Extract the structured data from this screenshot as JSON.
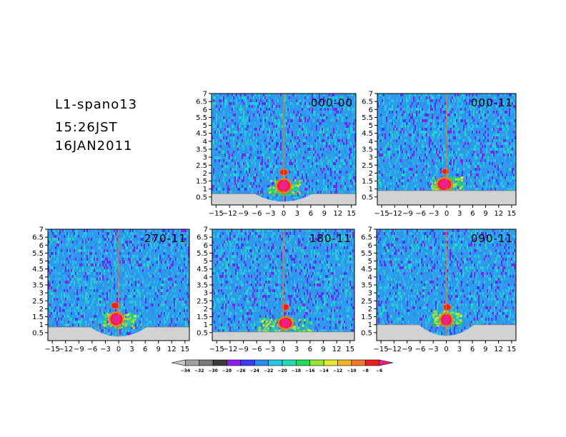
{
  "title_block": {
    "line1": "L1-spano13",
    "line2": "15:26JST",
    "line3": "16JAN2011"
  },
  "chart_data": {
    "type": "heatmap",
    "x_ticks": [
      "-15",
      "-12",
      "-9",
      "-6",
      "-3",
      "0",
      "3",
      "6",
      "9",
      "12",
      "15"
    ],
    "x_tick_values": [
      -15,
      -12,
      -9,
      -6,
      -3,
      0,
      3,
      6,
      9,
      12,
      15
    ],
    "y_ticks": [
      "0.5",
      "1",
      "1.5",
      "2",
      "2.5",
      "3",
      "3.5",
      "4",
      "4.5",
      "5",
      "5.5",
      "6",
      "6.5",
      "7"
    ],
    "y_tick_values": [
      0.5,
      1,
      1.5,
      2,
      2.5,
      3,
      3.5,
      4,
      4.5,
      5,
      5.5,
      6,
      6.5,
      7
    ],
    "xlim": [
      -16,
      16
    ],
    "ylim": [
      0,
      7
    ],
    "panels": [
      {
        "label": "000-00",
        "floor_top": 0.7,
        "floor_shape": "bowl",
        "hot": {
          "x": 0,
          "y": 1.2,
          "w": 2.6,
          "h": 0.75
        },
        "upper": {
          "x": 0,
          "y": 2.05,
          "w": 1.6,
          "h": 0.35
        },
        "warm_spread": 3.5
      },
      {
        "label": "000-11",
        "floor_top": 0.9,
        "floor_shape": "flat",
        "hot": {
          "x": -0.5,
          "y": 1.3,
          "w": 2.8,
          "h": 0.7
        },
        "upper": {
          "x": -0.3,
          "y": 2.1,
          "w": 1.4,
          "h": 0.3
        },
        "warm_spread": 3.8
      },
      {
        "label": "270-11",
        "floor_top": 0.85,
        "floor_shape": "bowl",
        "hot": {
          "x": -0.5,
          "y": 1.35,
          "w": 2.5,
          "h": 0.75
        },
        "upper": {
          "x": -0.8,
          "y": 2.2,
          "w": 1.6,
          "h": 0.35
        },
        "warm_spread": 3.6
      },
      {
        "label": "180-11",
        "floor_top": 0.55,
        "floor_shape": "flat",
        "hot": {
          "x": 0.5,
          "y": 1.1,
          "w": 2.6,
          "h": 0.65
        },
        "upper": {
          "x": 0.5,
          "y": 2.1,
          "w": 1.4,
          "h": 0.35
        },
        "warm_spread": 6.0
      },
      {
        "label": "090-11",
        "floor_top": 1.0,
        "floor_shape": "bowl",
        "hot": {
          "x": 0,
          "y": 1.3,
          "w": 2.2,
          "h": 0.7
        },
        "upper": {
          "x": 0.2,
          "y": 2.1,
          "w": 1.6,
          "h": 0.35
        },
        "warm_spread": 3.2
      }
    ],
    "colorbar": {
      "labels": [
        "-34",
        "-32",
        "-30",
        "-28",
        "-26",
        "-24",
        "-22",
        "-20",
        "-18",
        "-16",
        "-14",
        "-12",
        "-10",
        "-8",
        "-6"
      ],
      "colors": [
        "#c8c8c8",
        "#a0a0a0",
        "#787878",
        "#3c3c3c",
        "#8a1ff0",
        "#3c3cff",
        "#2c8cf0",
        "#26c8e6",
        "#20dcb4",
        "#20dc50",
        "#96e632",
        "#e6e632",
        "#f0b428",
        "#f07828",
        "#f01e1e",
        "#f01e8c"
      ]
    }
  }
}
